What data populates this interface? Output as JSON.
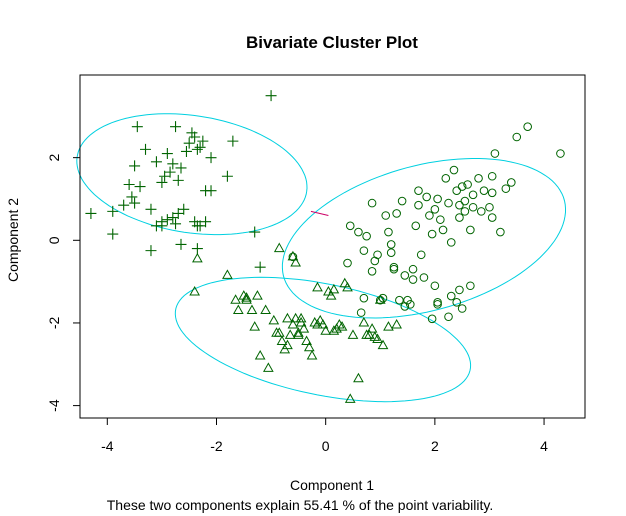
{
  "chart_data": {
    "type": "scatter",
    "title": "Bivariate Cluster Plot",
    "xlabel": "Component 1",
    "ylabel": "Component 2",
    "subtitle": "These two components explain 55.41 % of the point variability.",
    "xlim": [
      -4.5,
      4.75
    ],
    "ylim": [
      -4.3,
      4.0
    ],
    "xticks": [
      "-4",
      "-2",
      "0",
      "2",
      "4"
    ],
    "xtick_values": [
      -4,
      -2,
      0,
      2,
      4
    ],
    "yticks": [
      "-4",
      "-2",
      "0",
      "2"
    ],
    "ytick_values": [
      -4,
      -2,
      0,
      2
    ],
    "grid": false,
    "colors": {
      "points": "#006400",
      "ellipse": "#00d0e0",
      "segment": "#cc0066",
      "axes": "#000000"
    },
    "ellipses": [
      {
        "cx": -2.45,
        "cy": 1.6,
        "a": 2.15,
        "b": 1.4,
        "angle_deg": -15
      },
      {
        "cx": 1.8,
        "cy": 0.05,
        "a": 2.75,
        "b": 1.7,
        "angle_deg": 25
      },
      {
        "cx": -0.05,
        "cy": -2.4,
        "a": 2.8,
        "b": 1.32,
        "angle_deg": -17
      }
    ],
    "segments": [
      {
        "x1": -0.27,
        "y1": 0.7,
        "x2": 0.05,
        "y2": 0.6
      }
    ],
    "series": [
      {
        "marker": "plus",
        "x": [
          -4.3,
          -3.9,
          -3.9,
          -3.7,
          -3.6,
          -3.5,
          -3.5,
          -3.4,
          -3.3,
          -3.2,
          -3.2,
          -3.1,
          -3.1,
          -3.0,
          -3.0,
          -3.0,
          -2.95,
          -2.9,
          -2.9,
          -2.85,
          -2.8,
          -2.8,
          -2.75,
          -2.7,
          -2.7,
          -2.65,
          -2.6,
          -2.55,
          -2.5,
          -2.45,
          -2.4,
          -2.4,
          -2.35,
          -2.35,
          -2.3,
          -2.3,
          -2.25,
          -2.2,
          -2.2,
          -2.1,
          -2.1,
          -1.8,
          -1.7,
          -1.3,
          -1.2,
          -1.0,
          -3.45,
          -3.55,
          -2.75,
          -2.65,
          -2.35
        ],
        "y": [
          0.65,
          0.7,
          0.15,
          0.85,
          1.35,
          1.8,
          0.9,
          1.3,
          2.2,
          0.75,
          -0.25,
          1.9,
          0.35,
          1.4,
          0.35,
          0.45,
          1.55,
          0.5,
          2.1,
          1.65,
          1.85,
          0.55,
          0.4,
          0.65,
          1.45,
          1.75,
          0.75,
          2.15,
          2.35,
          2.6,
          2.5,
          0.45,
          2.2,
          0.35,
          2.25,
          0.35,
          2.4,
          1.2,
          0.45,
          2.0,
          1.2,
          1.55,
          2.4,
          0.2,
          -0.65,
          3.5,
          2.75,
          1.05,
          2.75,
          -0.1,
          -0.2
        ]
      },
      {
        "marker": "circle",
        "x": [
          -0.6,
          0.45,
          0.6,
          0.7,
          0.75,
          0.85,
          0.95,
          1.05,
          1.1,
          1.15,
          1.25,
          1.3,
          1.4,
          1.45,
          1.6,
          1.65,
          1.7,
          1.75,
          1.85,
          1.9,
          1.95,
          2.0,
          2.05,
          2.1,
          2.15,
          2.2,
          2.25,
          2.3,
          2.35,
          2.4,
          2.45,
          2.5,
          2.55,
          2.6,
          2.65,
          2.7,
          2.8,
          2.9,
          3.0,
          3.05,
          3.1,
          3.2,
          3.3,
          3.4,
          3.5,
          3.7,
          4.3,
          1.0,
          1.35,
          1.55,
          2.7,
          3.05,
          0.85,
          1.2,
          1.5,
          1.8,
          2.05,
          2.3,
          2.5,
          2.65,
          0.65,
          1.45,
          1.95,
          2.25,
          2.4,
          2.55,
          1.7,
          2.05,
          2.45,
          2.85,
          3.05,
          0.4,
          0.9,
          1.25,
          1.6,
          2.0,
          2.45,
          0.7,
          1.2
        ],
        "y": [
          -0.4,
          0.35,
          0.2,
          -1.4,
          0.1,
          0.9,
          -0.35,
          -1.4,
          0.6,
          0.2,
          -0.7,
          0.65,
          0.95,
          -0.85,
          -0.7,
          0.35,
          1.2,
          -0.35,
          1.05,
          0.6,
          0.15,
          0.75,
          -1.5,
          0.5,
          0.25,
          1.5,
          0.9,
          -0.05,
          1.7,
          1.2,
          0.55,
          1.3,
          0.95,
          1.35,
          0.25,
          1.1,
          1.5,
          1.2,
          0.8,
          1.55,
          2.1,
          0.2,
          1.25,
          1.4,
          2.5,
          2.75,
          2.1,
          -1.45,
          -1.45,
          -1.55,
          0.8,
          1.15,
          -0.75,
          -0.1,
          -1.45,
          -0.9,
          -1.55,
          -1.35,
          -1.65,
          -1.1,
          -1.75,
          -1.6,
          -1.9,
          -1.85,
          -1.5,
          0.7,
          0.85,
          1.0,
          0.85,
          0.7,
          0.55,
          -0.55,
          -0.5,
          -0.65,
          -0.95,
          -1.1,
          -1.2,
          -0.25,
          -0.3
        ]
      },
      {
        "marker": "triangle",
        "x": [
          -2.35,
          -2.4,
          -1.8,
          -1.65,
          -1.6,
          -1.5,
          -1.45,
          -1.35,
          -1.3,
          -1.2,
          -1.1,
          -1.05,
          -0.95,
          -0.9,
          -0.85,
          -0.8,
          -0.75,
          -0.7,
          -0.65,
          -0.6,
          -0.55,
          -0.5,
          -0.45,
          -0.4,
          -0.35,
          -0.3,
          -0.25,
          -0.2,
          -0.15,
          -0.1,
          -0.05,
          0.0,
          0.05,
          0.1,
          0.15,
          0.2,
          0.25,
          0.3,
          0.35,
          0.4,
          0.45,
          0.5,
          0.6,
          0.7,
          0.75,
          0.8,
          0.85,
          0.9,
          0.95,
          1.0,
          1.05,
          1.15,
          1.3,
          -1.45,
          -1.25,
          -0.6,
          -0.55,
          -0.7,
          -0.45,
          -0.15,
          0.15,
          -0.85,
          -0.5
        ],
        "y": [
          -0.45,
          -1.25,
          -0.85,
          -1.45,
          -1.7,
          -1.35,
          -1.4,
          -1.7,
          -2.1,
          -2.8,
          -1.7,
          -3.1,
          -1.95,
          -2.25,
          -2.25,
          -2.45,
          -2.65,
          -2.55,
          -2.3,
          -2.05,
          -1.9,
          -2.3,
          -2.0,
          -2.15,
          -2.45,
          -2.6,
          -2.8,
          -2.0,
          -2.05,
          -1.95,
          -2.05,
          -2.2,
          -1.25,
          -1.35,
          -2.2,
          -2.15,
          -2.05,
          -2.1,
          -1.05,
          -1.15,
          -3.85,
          -2.3,
          -3.35,
          -2.0,
          -2.3,
          -2.3,
          -2.15,
          -2.35,
          -2.4,
          -1.45,
          -2.55,
          -2.1,
          -2.05,
          -1.45,
          -1.35,
          -0.4,
          -0.55,
          -1.9,
          -1.9,
          -1.15,
          -1.2,
          -0.2,
          -2.25
        ]
      }
    ]
  }
}
